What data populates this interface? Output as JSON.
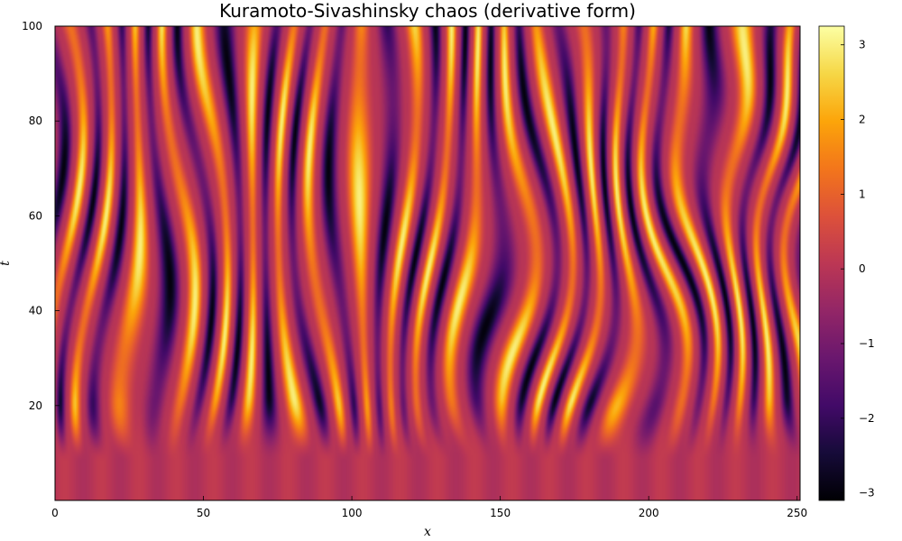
{
  "chart_data": {
    "type": "heatmap",
    "title": "Kuramoto-Sivashinsky chaos (derivative form)",
    "xlabel": "x",
    "ylabel": "t",
    "xlim": [
      0,
      251
    ],
    "ylim": [
      0,
      100
    ],
    "x_ticks": [
      0,
      50,
      100,
      150,
      200,
      250
    ],
    "x_tick_labels": [
      "0",
      "50",
      "100",
      "150",
      "200",
      "250"
    ],
    "y_ticks": [
      20,
      40,
      60,
      80,
      100
    ],
    "y_tick_labels": [
      "20",
      "40",
      "60",
      "80",
      "100"
    ],
    "colorbar": {
      "colormap": "inferno",
      "range": [
        -3.1,
        3.25
      ],
      "ticks": [
        -3,
        -2,
        -1,
        0,
        1,
        2,
        3
      ],
      "tick_labels": [
        "−3",
        "−2",
        "−1",
        "0",
        "1",
        "2",
        "3"
      ]
    },
    "field": {
      "description_values": "u_x field; near 0 for t < 10, chaotic stripes of amplitude ~±3 for t > 20",
      "value_min": -3.1,
      "value_max": 3.25,
      "t_transition": [
        8,
        22
      ]
    },
    "grid": false,
    "legend": "none"
  }
}
